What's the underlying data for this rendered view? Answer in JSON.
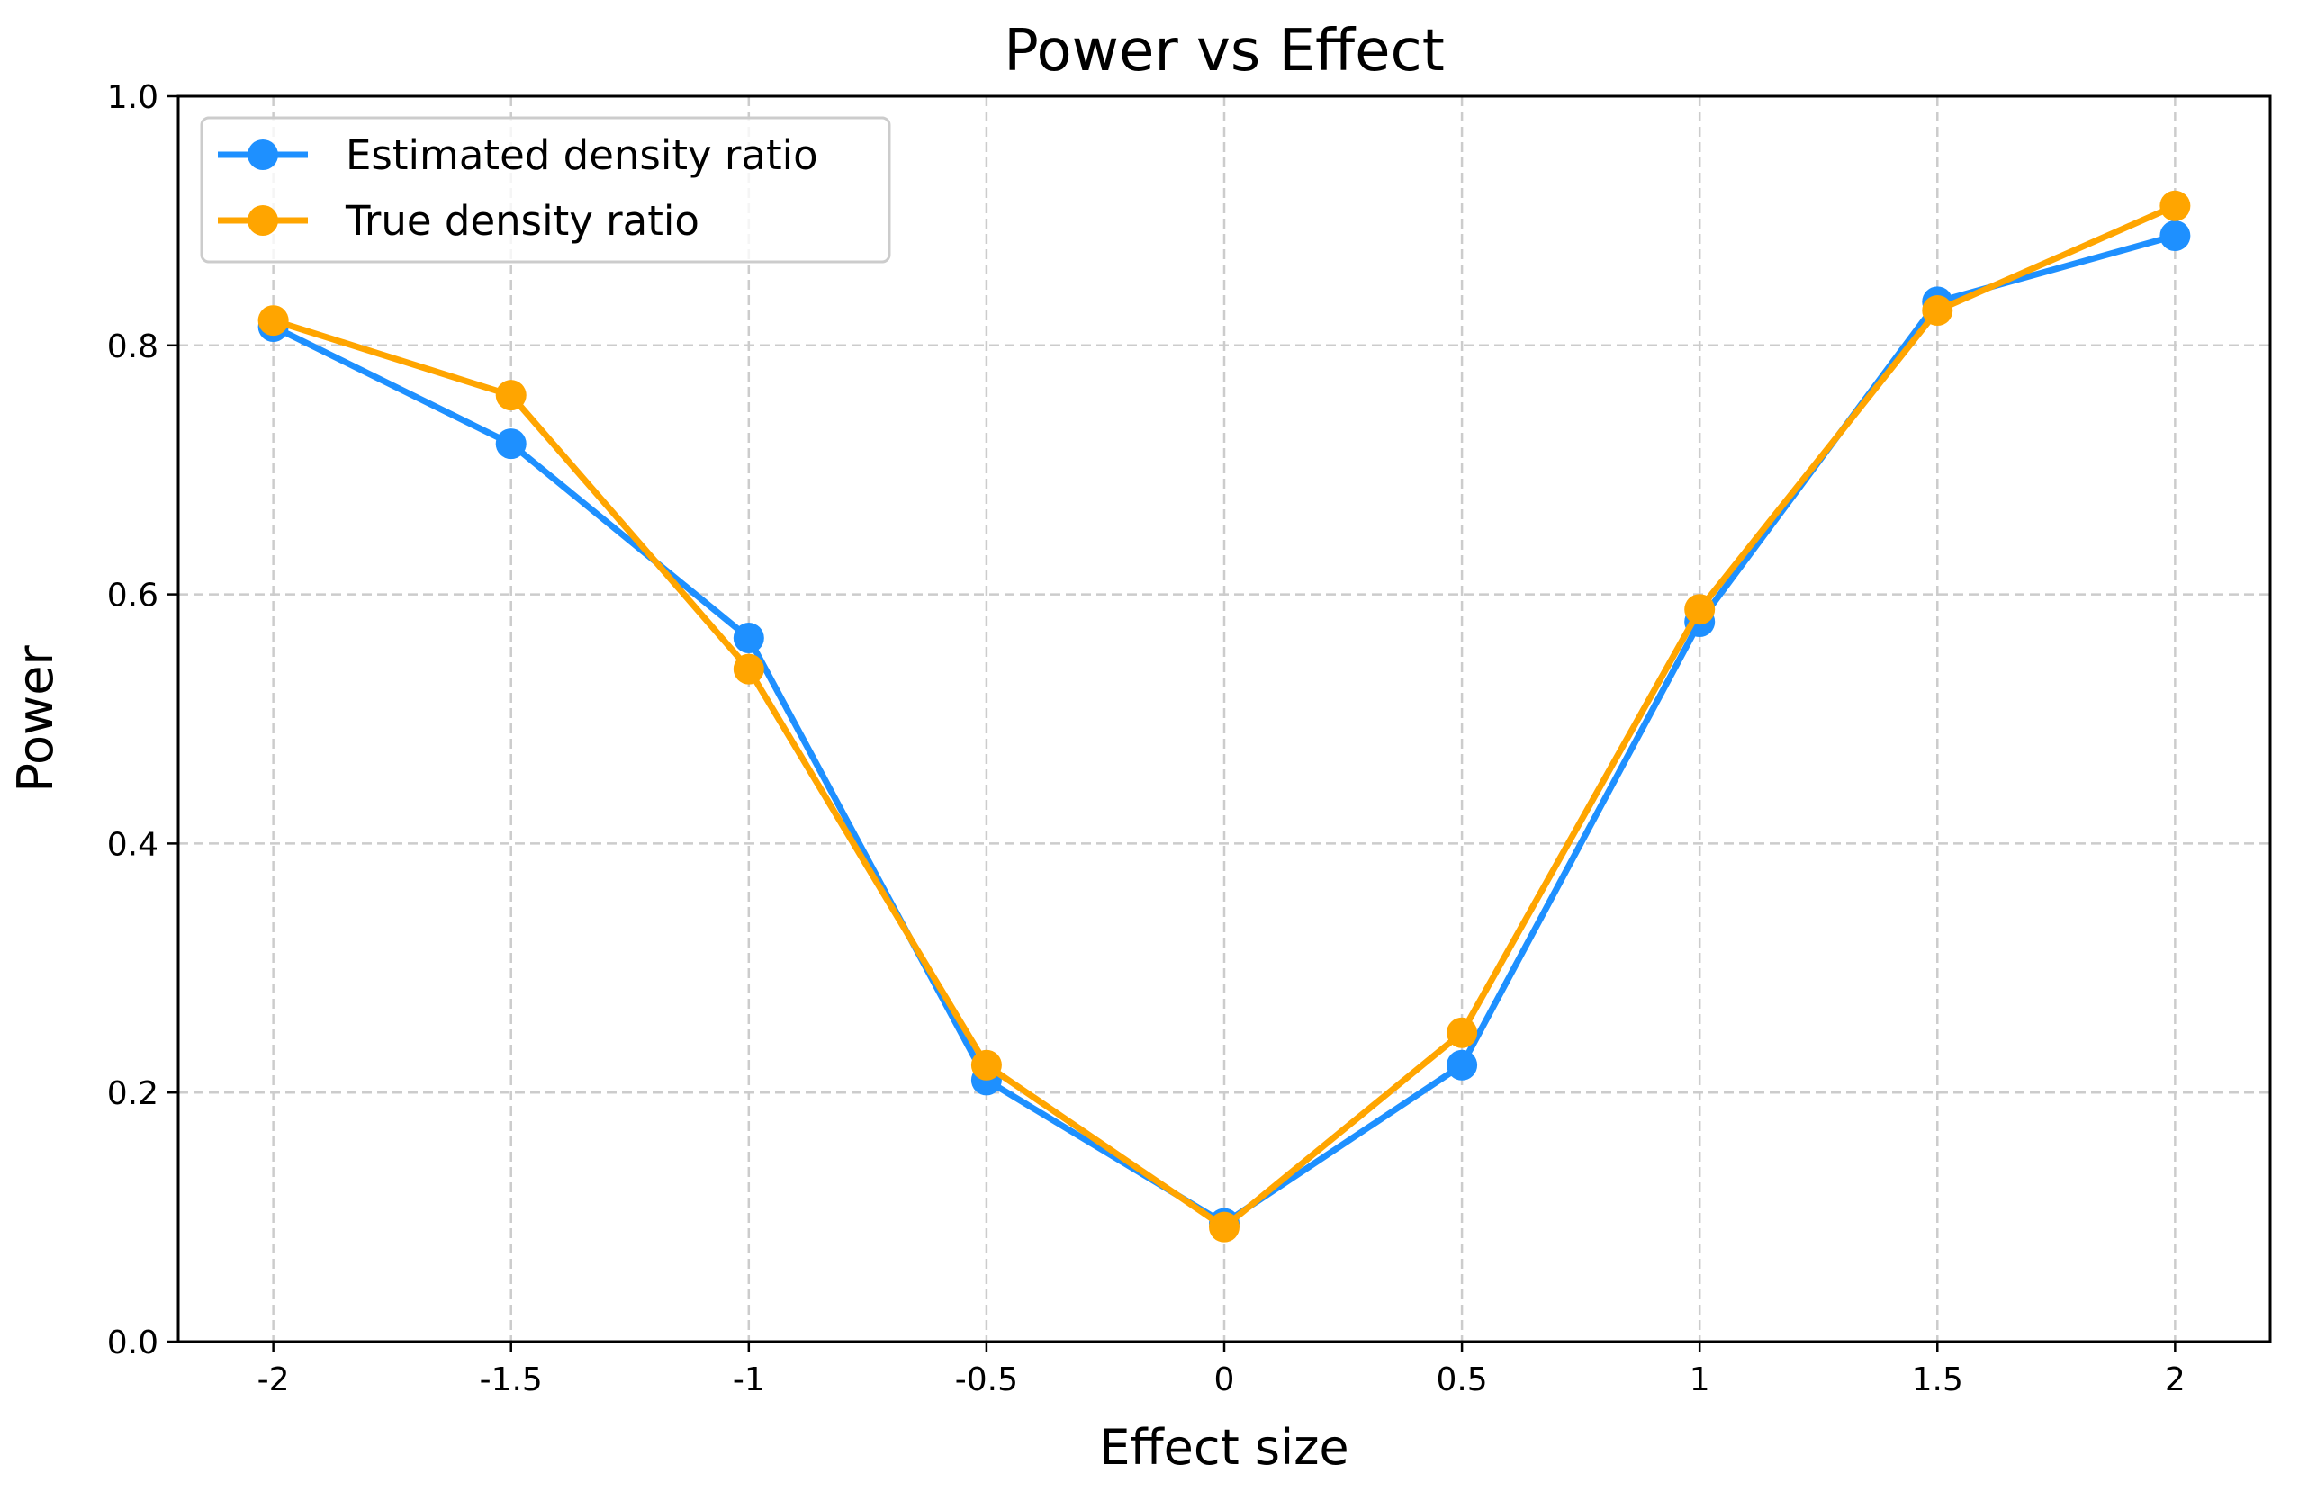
{
  "chart_data": {
    "type": "line",
    "title": "Power vs Effect",
    "xlabel": "Effect size",
    "ylabel": "Power",
    "x": [
      -2,
      -1.5,
      -1,
      -0.5,
      0,
      0.5,
      1,
      1.5,
      2
    ],
    "x_tick_labels": [
      "-2",
      "-1.5",
      "-1",
      "-0.5",
      "0",
      "0.5",
      "1",
      "1.5",
      "2"
    ],
    "y_ticks": [
      0.0,
      0.2,
      0.4,
      0.6,
      0.8,
      1.0
    ],
    "y_tick_labels": [
      "0.0",
      "0.2",
      "0.4",
      "0.6",
      "0.8",
      "1.0"
    ],
    "xlim": [
      -2.2,
      2.2
    ],
    "ylim": [
      0.0,
      1.0
    ],
    "grid": true,
    "legend_position": "top-left",
    "series": [
      {
        "name": "Estimated density ratio",
        "color": "#1E90FF",
        "marker": "circle",
        "values": [
          0.815,
          0.721,
          0.565,
          0.21,
          0.095,
          0.222,
          0.578,
          0.835,
          0.888
        ]
      },
      {
        "name": "True density ratio",
        "color": "#FFA500",
        "marker": "circle",
        "values": [
          0.82,
          0.76,
          0.54,
          0.222,
          0.092,
          0.248,
          0.588,
          0.828,
          0.912
        ]
      }
    ]
  }
}
